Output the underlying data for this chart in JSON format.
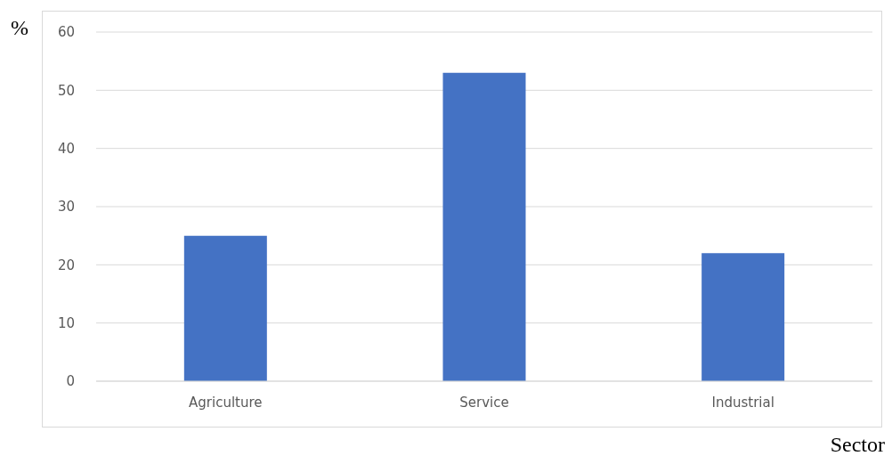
{
  "chart_data": {
    "type": "bar",
    "xlabel": "Sector",
    "ylabel": "%",
    "categories": [
      "Agriculture",
      "Service",
      "Industrial"
    ],
    "values": [
      25,
      53,
      22
    ],
    "color": "#4472c4",
    "ylim": [
      0,
      60
    ],
    "yticks": [
      0,
      10,
      20,
      30,
      40,
      50,
      60
    ],
    "grid": "y"
  }
}
